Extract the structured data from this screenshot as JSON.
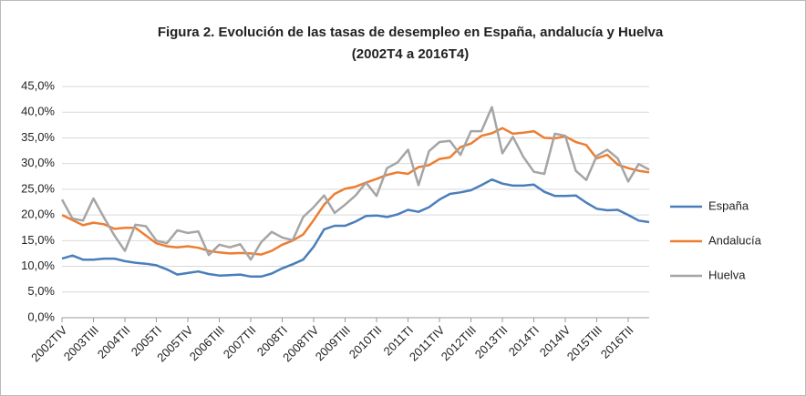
{
  "chart_data": {
    "type": "line",
    "title": "Figura 2. Evolución de las tasas de desempleo en España, andalucía y Huelva",
    "subtitle": "(2002T4 a 2016T4)",
    "categories": [
      "2002TIV",
      null,
      null,
      "2003TIII",
      null,
      null,
      "2004TII",
      null,
      null,
      "2005TI",
      null,
      null,
      "2005TIV",
      null,
      null,
      "2006TIII",
      null,
      null,
      "2007TII",
      null,
      null,
      "2008TI",
      null,
      null,
      "2008TIV",
      null,
      null,
      "2009TIII",
      null,
      null,
      "2010TII",
      null,
      null,
      "2011TI",
      null,
      null,
      "2011TIV",
      null,
      null,
      "2012TIII",
      null,
      null,
      "2013TII",
      null,
      null,
      "2014TI",
      null,
      null,
      "2014IV",
      null,
      null,
      "2015TIII",
      null,
      null,
      "2016TII",
      null,
      null
    ],
    "series": [
      {
        "name": "España",
        "color": "#4a7ebb",
        "values": [
          11.5,
          12.1,
          11.3,
          11.3,
          11.5,
          11.5,
          11.0,
          10.7,
          10.5,
          10.2,
          9.4,
          8.4,
          8.7,
          9.0,
          8.5,
          8.2,
          8.3,
          8.4,
          8.0,
          8.0,
          8.6,
          9.6,
          10.4,
          11.3,
          13.8,
          17.2,
          17.9,
          17.9,
          18.7,
          19.8,
          19.9,
          19.6,
          20.1,
          21.0,
          20.6,
          21.5,
          23.0,
          24.1,
          24.4,
          24.8,
          25.8,
          26.9,
          26.1,
          25.7,
          25.7,
          25.9,
          24.5,
          23.7,
          23.7,
          23.8,
          22.4,
          21.2,
          20.9,
          21.0,
          20.0,
          18.9,
          18.6
        ]
      },
      {
        "name": "Andalucía",
        "color": "#ed7d31",
        "values": [
          20.0,
          19.0,
          18.0,
          18.5,
          18.2,
          17.3,
          17.5,
          17.5,
          16.0,
          14.5,
          13.9,
          13.7,
          13.9,
          13.6,
          13.0,
          12.7,
          12.5,
          12.6,
          12.5,
          12.3,
          13.0,
          14.2,
          15.0,
          16.2,
          19.0,
          22.0,
          24.1,
          25.1,
          25.5,
          26.3,
          27.0,
          27.8,
          28.3,
          28.0,
          29.3,
          29.7,
          30.9,
          31.2,
          33.2,
          33.9,
          35.4,
          35.9,
          36.9,
          35.8,
          36.0,
          36.3,
          35.0,
          34.9,
          35.3,
          34.2,
          33.6,
          31.0,
          31.7,
          29.8,
          29.1,
          28.6,
          28.3
        ]
      },
      {
        "name": "Huelva",
        "color": "#a5a5a5",
        "values": [
          23.0,
          19.3,
          18.9,
          23.2,
          19.5,
          16.0,
          13.0,
          18.1,
          17.8,
          15.0,
          14.5,
          17.0,
          16.5,
          16.8,
          12.2,
          14.2,
          13.7,
          14.3,
          11.3,
          14.7,
          16.7,
          15.6,
          15.1,
          19.6,
          21.5,
          23.8,
          20.4,
          22.0,
          23.8,
          26.3,
          23.7,
          29.1,
          30.2,
          32.7,
          25.8,
          32.4,
          34.2,
          34.4,
          31.7,
          36.3,
          36.3,
          41.0,
          32.0,
          35.2,
          31.3,
          28.4,
          28.0,
          35.8,
          35.4,
          28.6,
          26.8,
          31.5,
          32.7,
          31.0,
          26.5,
          29.9,
          28.8
        ]
      }
    ],
    "ylim": [
      0,
      45
    ],
    "yticks": [
      {
        "value": 0,
        "label": "0,0%"
      },
      {
        "value": 5,
        "label": "5,0%"
      },
      {
        "value": 10,
        "label": "10,0%"
      },
      {
        "value": 15,
        "label": "15,0%"
      },
      {
        "value": 20,
        "label": "20,0%"
      },
      {
        "value": 25,
        "label": "25,0%"
      },
      {
        "value": 30,
        "label": "30,0%"
      },
      {
        "value": 35,
        "label": "35,0%"
      },
      {
        "value": 40,
        "label": "40,0%"
      },
      {
        "value": 45,
        "label": "45,0%"
      }
    ],
    "grid": true,
    "legend": "right"
  }
}
